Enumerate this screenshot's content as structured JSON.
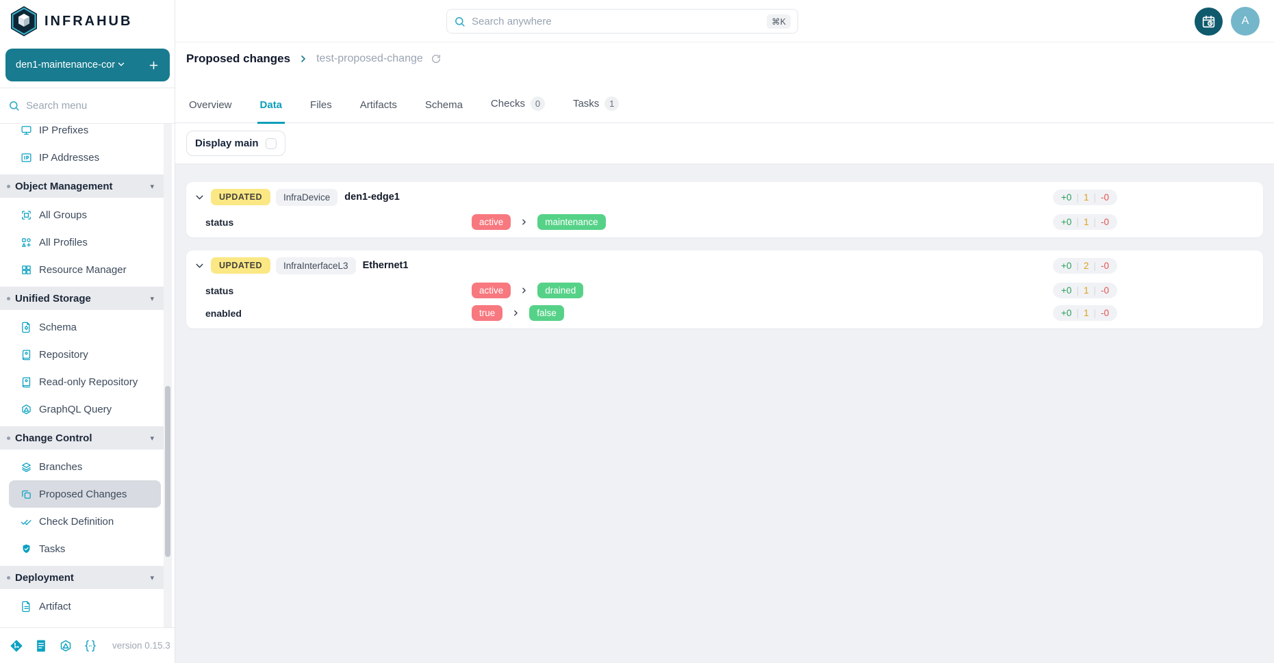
{
  "brand": {
    "name": "INFRAHUB",
    "branch": "den1-maintenance-cor",
    "add_branch_label": "+"
  },
  "sidebar": {
    "search_placeholder": "Search menu",
    "menu": [
      {
        "type": "item",
        "label": "IP Prefixes",
        "icon": "ip-prefixes-icon"
      },
      {
        "type": "item",
        "label": "IP Addresses",
        "icon": "ip-addresses-icon"
      },
      {
        "type": "section",
        "label": "Object Management"
      },
      {
        "type": "item",
        "label": "All Groups",
        "icon": "all-groups-icon"
      },
      {
        "type": "item",
        "label": "All Profiles",
        "icon": "all-profiles-icon"
      },
      {
        "type": "item",
        "label": "Resource Manager",
        "icon": "resource-manager-icon"
      },
      {
        "type": "section",
        "label": "Unified Storage"
      },
      {
        "type": "item",
        "label": "Schema",
        "icon": "schema-icon"
      },
      {
        "type": "item",
        "label": "Repository",
        "icon": "repository-icon"
      },
      {
        "type": "item",
        "label": "Read-only Repository",
        "icon": "repository-icon"
      },
      {
        "type": "item",
        "label": "GraphQL Query",
        "icon": "graphql-icon"
      },
      {
        "type": "section",
        "label": "Change Control"
      },
      {
        "type": "item",
        "label": "Branches",
        "icon": "branches-icon"
      },
      {
        "type": "item",
        "label": "Proposed Changes",
        "icon": "proposed-changes-icon",
        "selected": true
      },
      {
        "type": "item",
        "label": "Check Definition",
        "icon": "check-definition-icon"
      },
      {
        "type": "item",
        "label": "Tasks",
        "icon": "tasks-icon"
      },
      {
        "type": "section",
        "label": "Deployment"
      },
      {
        "type": "item",
        "label": "Artifact",
        "icon": "artifact-icon"
      }
    ],
    "footer": {
      "icons": [
        "git-icon",
        "docs-icon",
        "graphql-playground-icon",
        "code-braces-icon"
      ],
      "version": "version 0.15.3"
    }
  },
  "topbar": {
    "search_placeholder": "Search anywhere",
    "shortcut": "⌘K",
    "avatar_initial": "A"
  },
  "breadcrumb": {
    "section": "Proposed changes",
    "item": "test-proposed-change"
  },
  "tabs": [
    {
      "label": "Overview"
    },
    {
      "label": "Data",
      "active": true
    },
    {
      "label": "Files"
    },
    {
      "label": "Artifacts"
    },
    {
      "label": "Schema"
    },
    {
      "label": "Checks",
      "badge": "0"
    },
    {
      "label": "Tasks",
      "badge": "1"
    }
  ],
  "toolbar": {
    "display_main_label": "Display main",
    "display_main_checked": false
  },
  "diff_cards": [
    {
      "status": "UPDATED",
      "kind": "InfraDevice",
      "name": "den1-edge1",
      "counters": {
        "added": "+0",
        "updated": "1",
        "removed": "-0"
      },
      "rows": [
        {
          "property": "status",
          "old_value": "active",
          "new_value": "maintenance",
          "counters": {
            "added": "+0",
            "updated": "1",
            "removed": "-0"
          }
        }
      ]
    },
    {
      "status": "UPDATED",
      "kind": "InfraInterfaceL3",
      "name": "Ethernet1",
      "counters": {
        "added": "+0",
        "updated": "2",
        "removed": "-0"
      },
      "rows": [
        {
          "property": "status",
          "old_value": "active",
          "new_value": "drained",
          "counters": {
            "added": "+0",
            "updated": "1",
            "removed": "-0"
          }
        },
        {
          "property": "enabled",
          "old_value": "true",
          "new_value": "false",
          "counters": {
            "added": "+0",
            "updated": "1",
            "removed": "-0"
          }
        }
      ]
    }
  ],
  "colors": {
    "brand_teal": "#187b8f",
    "icon_teal": "#0ba1c2",
    "active_tab": "#0b9eba",
    "calendar_btn_bg": "#0f5a6d",
    "avatar_bg": "#74b7cb",
    "updated_badge_bg": "#fbe884",
    "old_value_bg": "#f8787f",
    "new_value_bg": "#56d288",
    "added_green": "#2ba05d",
    "updated_amber": "#d9a21b",
    "removed_red": "#e35252"
  }
}
